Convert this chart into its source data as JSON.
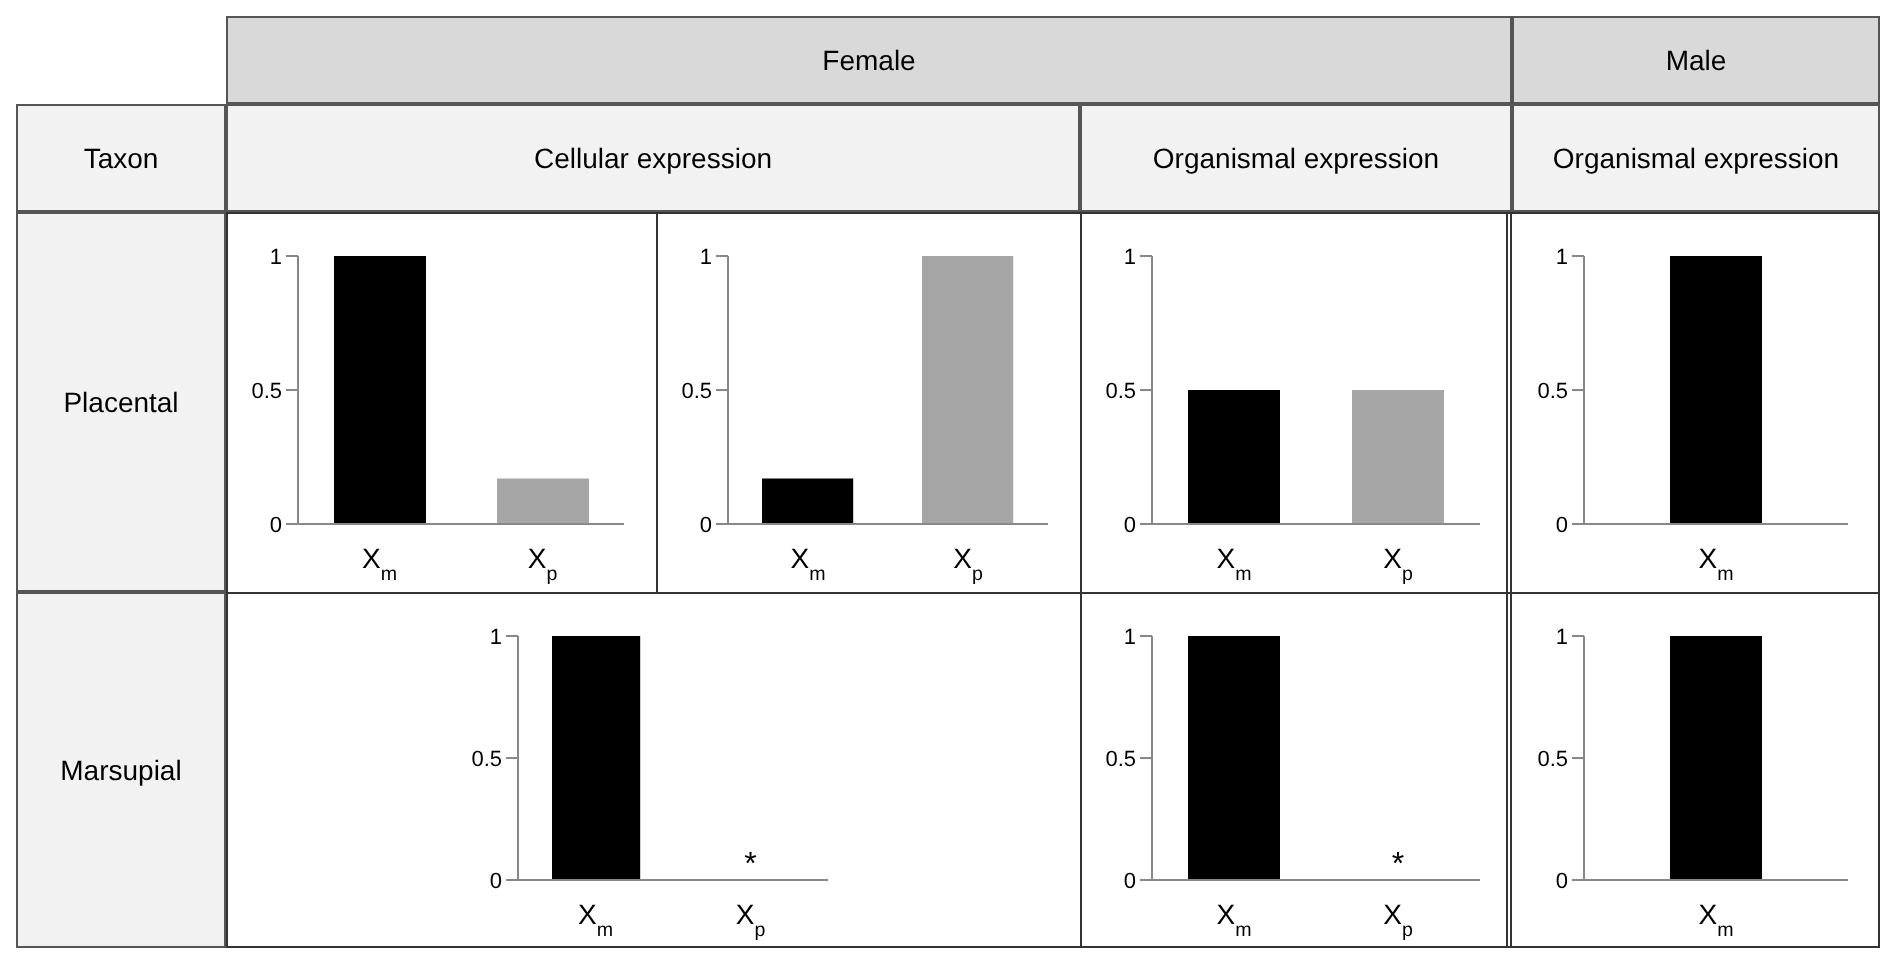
{
  "chart_data": [
    {
      "type": "other",
      "annotations": [
        "Female",
        "Male",
        "Taxon",
        "Cellular expression",
        "Organismal expression",
        "Organismal expression",
        "Placental",
        "Marsupial"
      ]
    },
    {
      "type": "bar",
      "categories": [
        "X$_{m}$",
        "X$_{p}$"
      ],
      "values": [
        1,
        0.17
      ],
      "colors": [
        "#000000",
        "#a6a6a6"
      ],
      "ylim": [
        0,
        1
      ],
      "yticks": [
        0,
        0.5,
        1
      ],
      "grid": false,
      "legend": false
    },
    {
      "type": "bar",
      "categories": [
        "X$_{m}$",
        "X$_{p}$"
      ],
      "values": [
        0.17,
        1
      ],
      "colors": [
        "#000000",
        "#a6a6a6"
      ],
      "ylim": [
        0,
        1
      ],
      "yticks": [
        0,
        0.5,
        1
      ],
      "grid": false,
      "legend": false
    },
    {
      "type": "bar",
      "categories": [
        "X$_{m}$",
        "X$_{p}$"
      ],
      "values": [
        0.5,
        0.5
      ],
      "colors": [
        "#000000",
        "#a6a6a6"
      ],
      "ylim": [
        0,
        1
      ],
      "yticks": [
        0,
        0.5,
        1
      ],
      "grid": false,
      "legend": false
    },
    {
      "type": "bar",
      "categories": [
        "X$_{m}$"
      ],
      "values": [
        1
      ],
      "colors": [
        "#000000"
      ],
      "ylim": [
        0,
        1
      ],
      "yticks": [
        0,
        0.5,
        1
      ],
      "grid": false,
      "legend": false
    },
    {
      "type": "bar",
      "categories": [
        "X$_{m}$",
        "X$_{p}$"
      ],
      "values": [
        1,
        0
      ],
      "colors": [
        "#000000",
        "#a6a6a6"
      ],
      "ylim": [
        0,
        1
      ],
      "yticks": [
        0,
        0.5,
        1
      ],
      "grid": false,
      "legend": false,
      "annotations": [
        {
          "text": "*",
          "x": "X$_{p}$",
          "y": 0
        }
      ]
    },
    {
      "type": "bar",
      "categories": [
        "X$_{m}$",
        "X$_{p}$"
      ],
      "values": [
        1,
        0
      ],
      "colors": [
        "#000000",
        "#a6a6a6"
      ],
      "ylim": [
        0,
        1
      ],
      "yticks": [
        0,
        0.5,
        1
      ],
      "grid": false,
      "legend": false,
      "annotations": [
        {
          "text": "*",
          "x": "X$_{p}$",
          "y": 0
        }
      ]
    },
    {
      "type": "bar",
      "categories": [
        "X$_{m}$"
      ],
      "values": [
        1
      ],
      "colors": [
        "#000000"
      ],
      "ylim": [
        0,
        1
      ],
      "yticks": [
        0,
        0.5,
        1
      ],
      "grid": false,
      "legend": false
    }
  ]
}
